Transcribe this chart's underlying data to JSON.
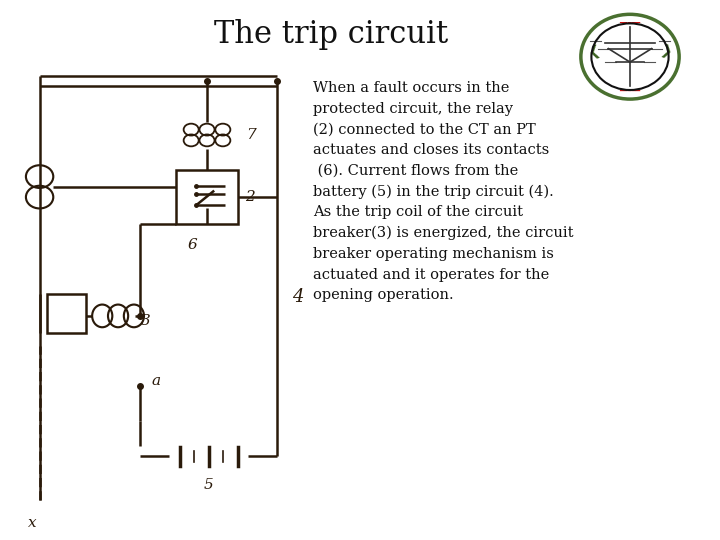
{
  "title": "The trip circuit",
  "title_fontsize": 22,
  "title_font": "serif",
  "bg_color": "#ffffff",
  "description": "When a fault occurs in the\nprotected circuit, the relay\n(2) connected to the CT an PT\nactuates and closes its contacts\n (6). Current flows from the\nbattery (5) in the trip circuit (4).\nAs the trip coil of the circuit\nbreaker(3) is energized, the circuit\nbreaker operating mechanism is\nactuated and it operates for the\nopening operation.",
  "desc_fontsize": 10.5,
  "circuit_color": "#2a1a0a",
  "lw": 1.8
}
